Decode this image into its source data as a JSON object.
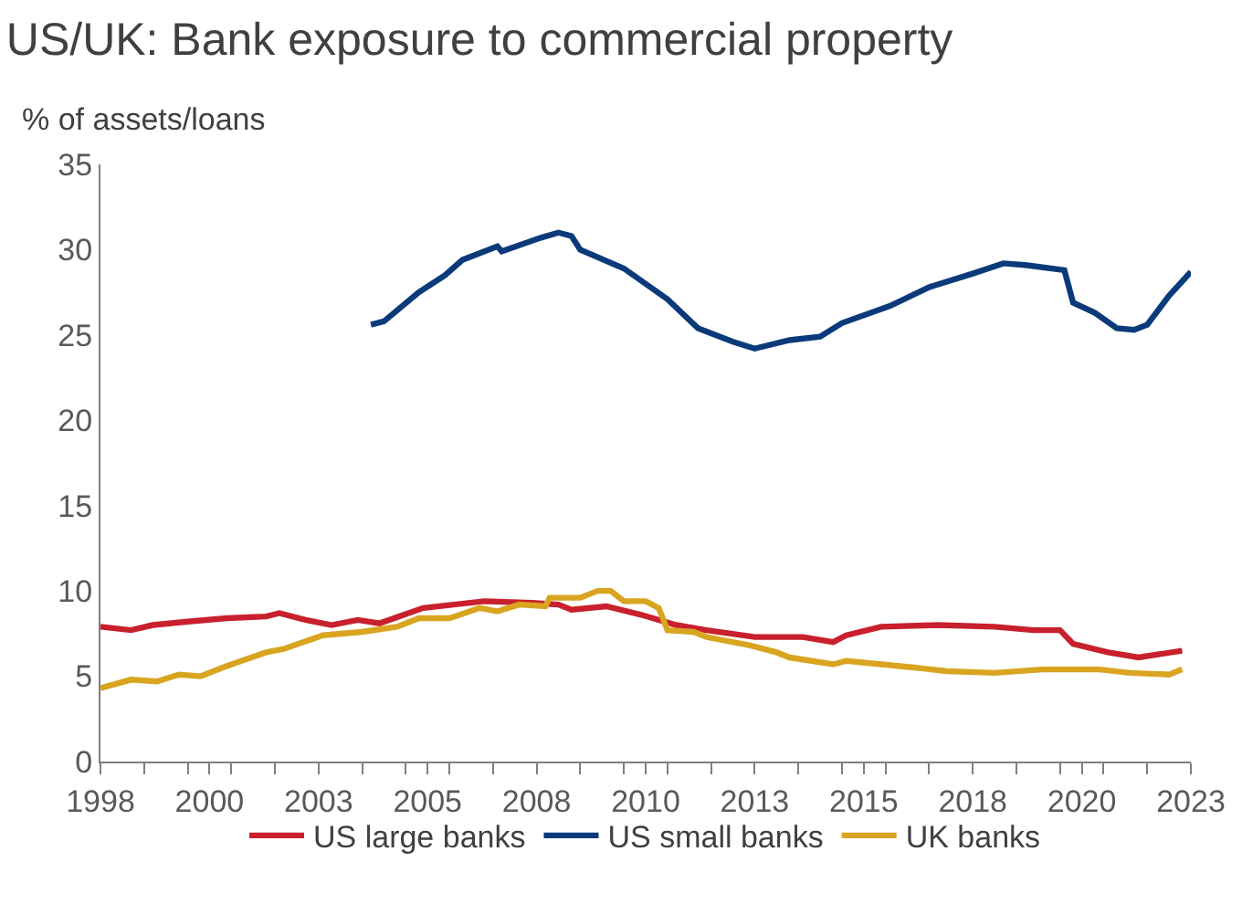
{
  "chart_data": {
    "type": "line",
    "title": "US/UK: Bank exposure to commercial property",
    "ylabel": "% of assets/loans",
    "xlim": [
      1998,
      2023
    ],
    "ylim": [
      0,
      35
    ],
    "yticks": [
      0,
      5,
      10,
      15,
      20,
      25,
      30,
      35
    ],
    "xticks": [
      {
        "value": 1998,
        "label": "1998"
      },
      {
        "value": 1999,
        "label": null
      },
      {
        "value": 2000,
        "label": null
      },
      {
        "value": 2000.5,
        "label": "2000"
      },
      {
        "value": 2001,
        "label": null
      },
      {
        "value": 2002,
        "label": null
      },
      {
        "value": 2003,
        "label": "2003"
      },
      {
        "value": 2004,
        "label": null
      },
      {
        "value": 2005,
        "label": null
      },
      {
        "value": 2005.5,
        "label": "2005"
      },
      {
        "value": 2006,
        "label": null
      },
      {
        "value": 2007,
        "label": null
      },
      {
        "value": 2008,
        "label": "2008"
      },
      {
        "value": 2009,
        "label": null
      },
      {
        "value": 2010,
        "label": null
      },
      {
        "value": 2010.5,
        "label": "2010"
      },
      {
        "value": 2011,
        "label": null
      },
      {
        "value": 2012,
        "label": null
      },
      {
        "value": 2013,
        "label": "2013"
      },
      {
        "value": 2014,
        "label": null
      },
      {
        "value": 2015,
        "label": null
      },
      {
        "value": 2015.5,
        "label": "2015"
      },
      {
        "value": 2016,
        "label": null
      },
      {
        "value": 2017,
        "label": null
      },
      {
        "value": 2018,
        "label": "2018"
      },
      {
        "value": 2019,
        "label": null
      },
      {
        "value": 2020,
        "label": null
      },
      {
        "value": 2020.5,
        "label": "2020"
      },
      {
        "value": 2021,
        "label": null
      },
      {
        "value": 2022,
        "label": null
      },
      {
        "value": 2023,
        "label": "2023"
      }
    ],
    "grid": false,
    "legend": "bottom",
    "marker": "none",
    "line_style": "solid",
    "series": [
      {
        "name": "US large banks",
        "color": "#c8202c",
        "x": [
          1998,
          1998.7,
          1999.2,
          2000.0,
          2000.9,
          2001.8,
          2002.1,
          2002.7,
          2003.3,
          2003.9,
          2004.4,
          2005.4,
          2006.1,
          2006.8,
          2007.9,
          2008.5,
          2008.8,
          2009.6,
          2010.4,
          2011.2,
          2011.9,
          2013.0,
          2014.1,
          2014.8,
          2015.1,
          2015.9,
          2017.2,
          2018.5,
          2019.4,
          2020.0,
          2020.3,
          2021.1,
          2021.8,
          2022.8
        ],
        "values": [
          7.9,
          7.7,
          8.0,
          8.2,
          8.4,
          8.5,
          8.7,
          8.3,
          8.0,
          8.3,
          8.1,
          9.0,
          9.2,
          9.4,
          9.3,
          9.2,
          8.9,
          9.1,
          8.6,
          8.0,
          7.7,
          7.3,
          7.3,
          7.0,
          7.4,
          7.9,
          8.0,
          7.9,
          7.7,
          7.7,
          6.9,
          6.4,
          6.1,
          6.5
        ]
      },
      {
        "name": "US small banks",
        "color": "#0a3a7a",
        "x": [
          2004.2,
          2004.5,
          2005.3,
          2005.9,
          2006.3,
          2007.1,
          2007.2,
          2008.1,
          2008.5,
          2008.8,
          2009.0,
          2010.0,
          2011.0,
          2011.7,
          2012.5,
          2013.0,
          2013.8,
          2014.5,
          2015.0,
          2016.1,
          2017.0,
          2018.0,
          2018.7,
          2019.2,
          2020.1,
          2020.3,
          2020.8,
          2021.3,
          2021.7,
          2022.0,
          2022.5,
          2023.0
        ],
        "values": [
          25.6,
          25.8,
          27.5,
          28.5,
          29.4,
          30.2,
          29.9,
          30.7,
          31.0,
          30.8,
          30.0,
          28.9,
          27.1,
          25.4,
          24.6,
          24.2,
          24.7,
          24.9,
          25.7,
          26.7,
          27.8,
          28.6,
          29.2,
          29.1,
          28.8,
          26.9,
          26.3,
          25.4,
          25.3,
          25.6,
          27.3,
          28.7
        ]
      },
      {
        "name": "UK banks",
        "color": "#d9a520",
        "x": [
          1998,
          1998.7,
          1999.3,
          1999.8,
          2000.3,
          2000.9,
          2001.8,
          2002.2,
          2003.1,
          2004.0,
          2004.8,
          2005.3,
          2006.0,
          2006.7,
          2007.1,
          2007.6,
          2008.2,
          2008.3,
          2009.0,
          2009.4,
          2009.7,
          2010.0,
          2010.5,
          2010.8,
          2011.0,
          2011.6,
          2011.9,
          2012.9,
          2013.5,
          2013.8,
          2014.3,
          2014.8,
          2015.1,
          2015.9,
          2016.7,
          2017.4,
          2018.5,
          2019.6,
          2020.9,
          2021.6,
          2022.5,
          2022.8
        ],
        "values": [
          4.3,
          4.8,
          4.7,
          5.1,
          5.0,
          5.6,
          6.4,
          6.6,
          7.4,
          7.6,
          7.9,
          8.4,
          8.4,
          9.0,
          8.8,
          9.2,
          9.1,
          9.6,
          9.6,
          10.0,
          10.0,
          9.4,
          9.4,
          9.0,
          7.7,
          7.6,
          7.3,
          6.8,
          6.4,
          6.1,
          5.9,
          5.7,
          5.9,
          5.7,
          5.5,
          5.3,
          5.2,
          5.4,
          5.4,
          5.2,
          5.1,
          5.4
        ]
      }
    ]
  }
}
